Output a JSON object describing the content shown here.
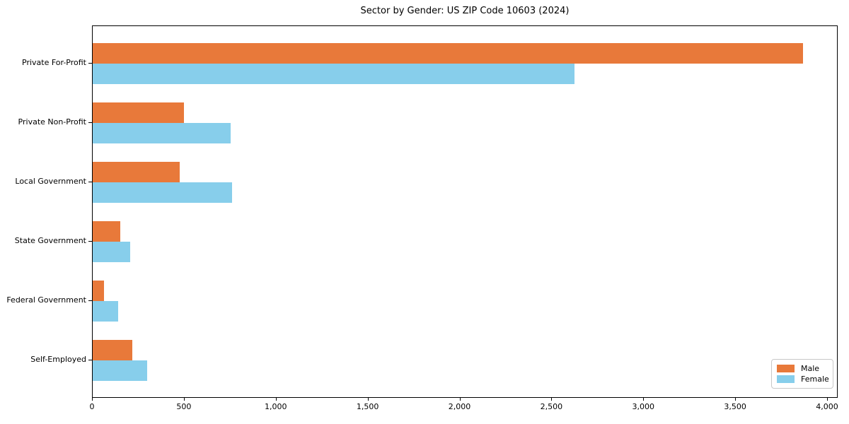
{
  "chart_data": {
    "type": "bar",
    "orientation": "horizontal",
    "title": "Sector by Gender: US ZIP Code 10603 (2024)",
    "categories": [
      "Private For-Profit",
      "Private Non-Profit",
      "Local Government",
      "State Government",
      "Federal Government",
      "Self-Employed"
    ],
    "series": [
      {
        "name": "Male",
        "color": "#e8793a",
        "values": [
          3865,
          495,
          475,
          150,
          60,
          215
        ]
      },
      {
        "name": "Female",
        "color": "#87ceeb",
        "values": [
          2620,
          750,
          760,
          205,
          140,
          295
        ]
      }
    ],
    "xlabel": "",
    "ylabel": "",
    "xlim": [
      0,
      4058
    ],
    "x_ticks": [
      0,
      500,
      1000,
      1500,
      2000,
      2500,
      3000,
      3500,
      4000
    ],
    "x_tick_labels": [
      "0",
      "500",
      "1,000",
      "1,500",
      "2,000",
      "2,500",
      "3,000",
      "3,500",
      "4,000"
    ],
    "grid": false,
    "legend": {
      "position": "lower right",
      "items": [
        {
          "label": "Male",
          "color": "#e8793a"
        },
        {
          "label": "Female",
          "color": "#87ceeb"
        }
      ]
    }
  }
}
